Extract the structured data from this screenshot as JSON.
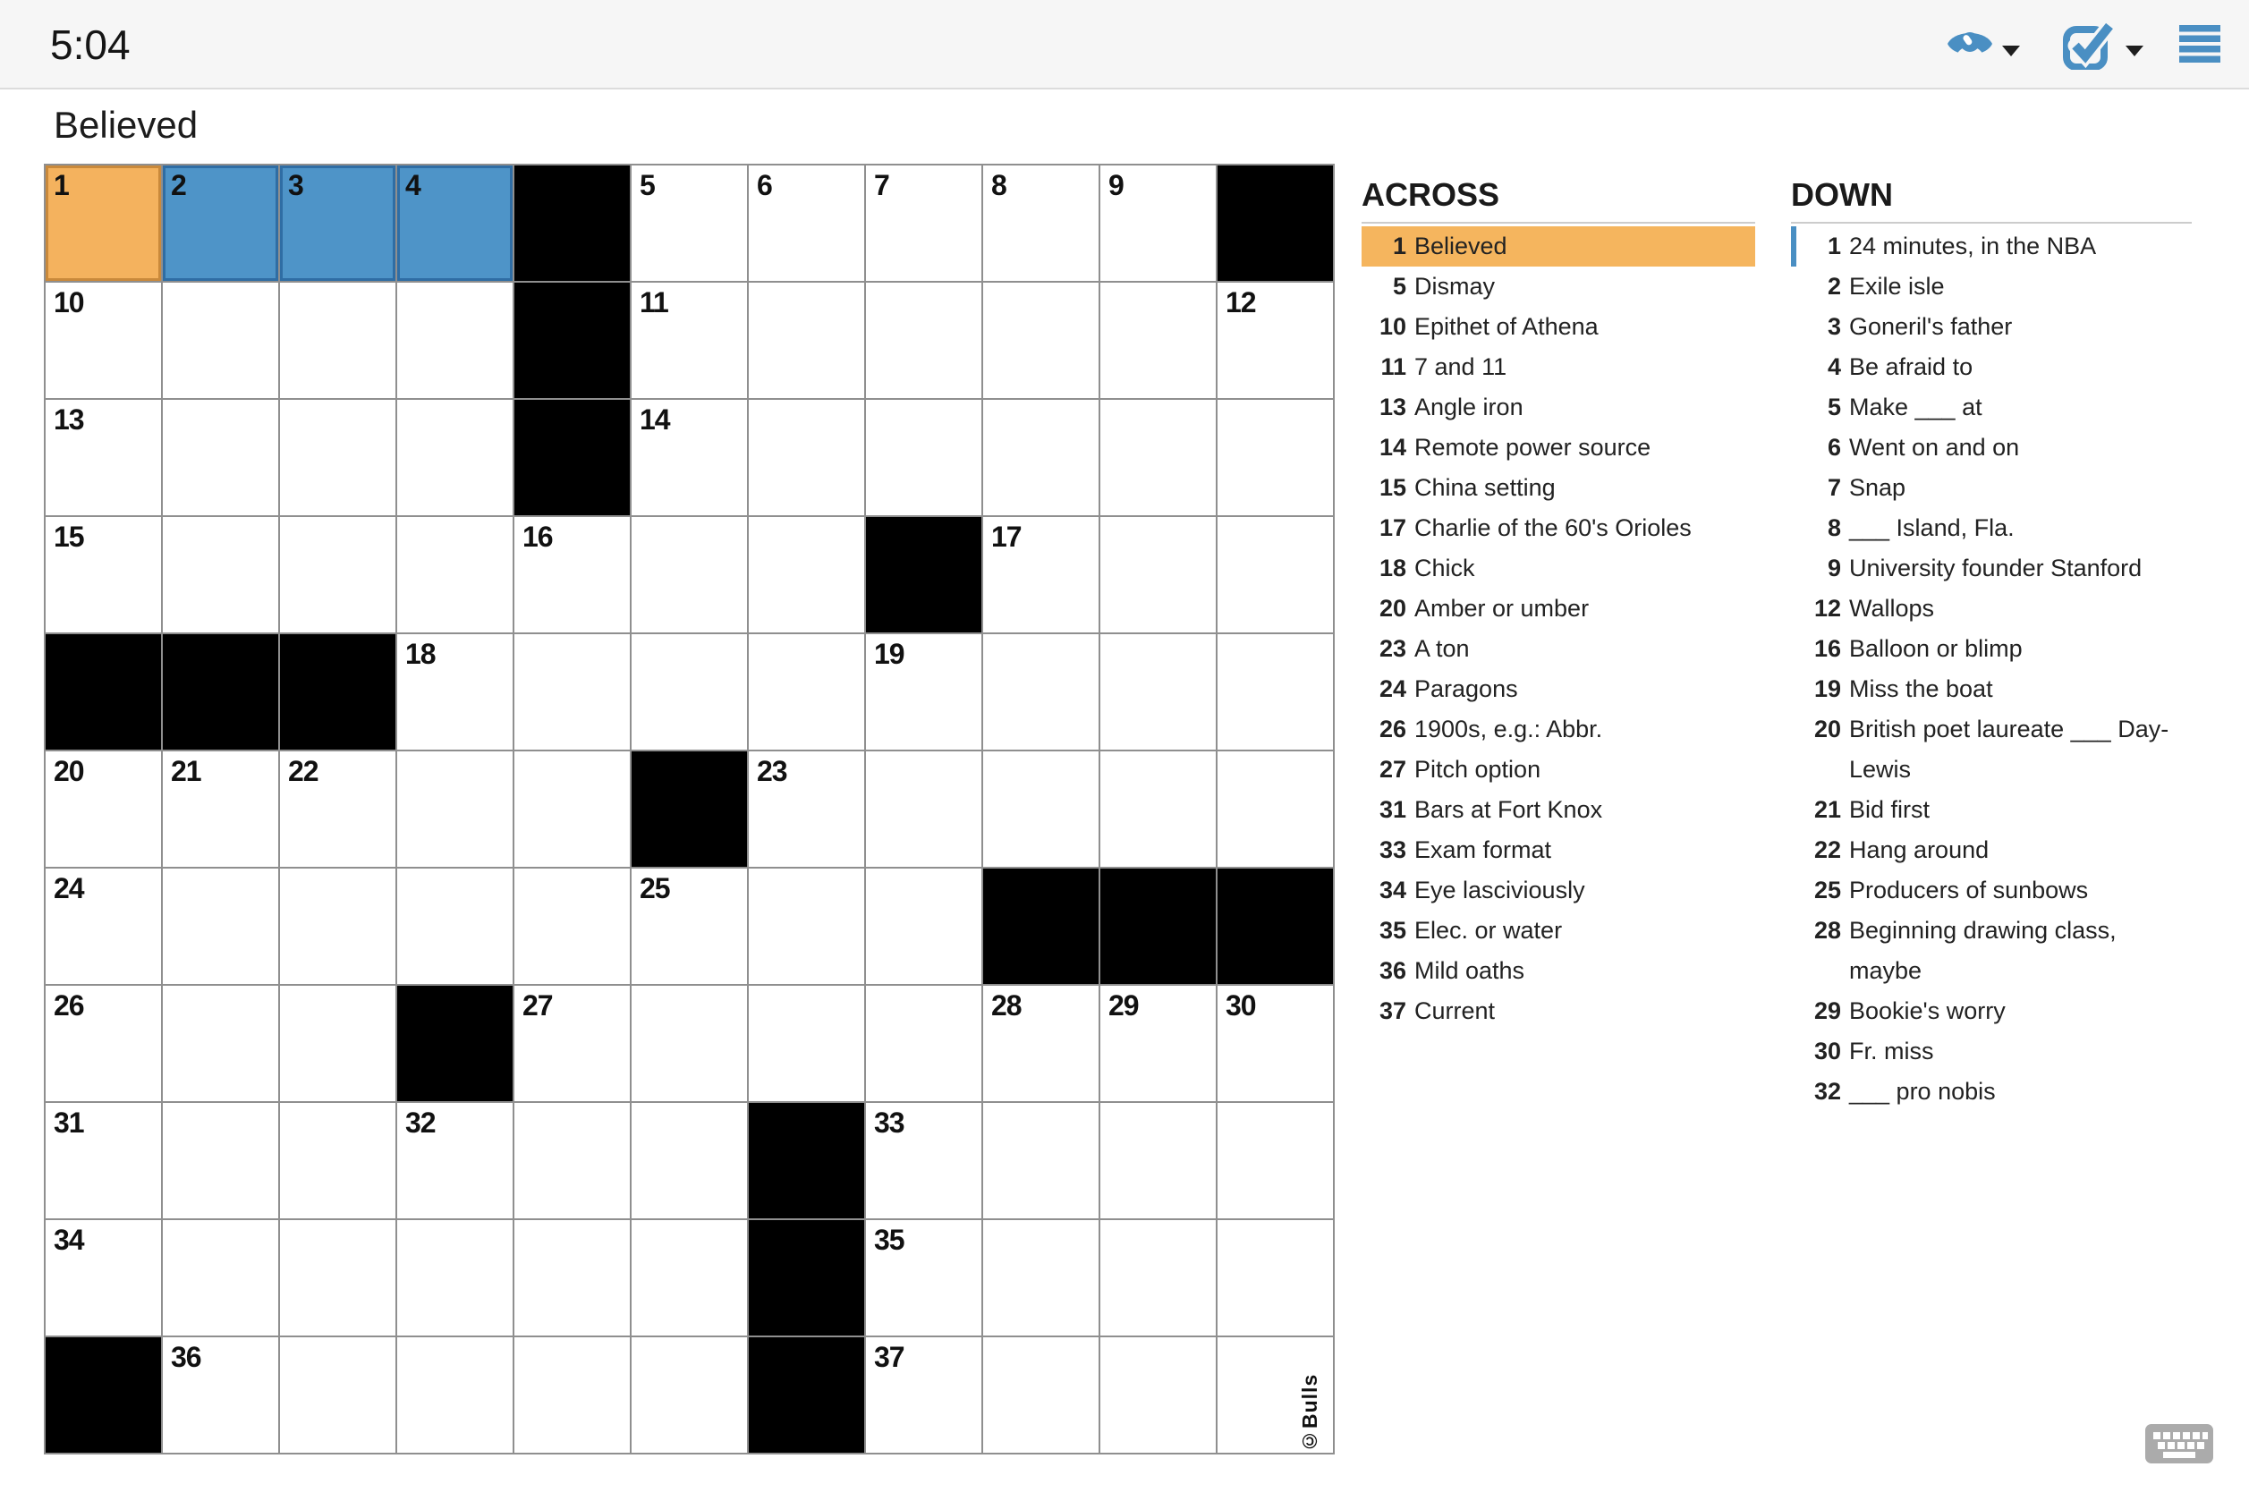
{
  "toolbar": {
    "timer": "5:04",
    "reveal_icon": "eye-icon",
    "check_icon": "check-square-icon",
    "menu_icon": "hamburger-menu-icon",
    "dropdown_icon": "caret-down-icon"
  },
  "puzzle": {
    "active_clue": "Believed",
    "credit": "©Bulls",
    "keyboard_icon": "keyboard-icon"
  },
  "grid": {
    "rows": 11,
    "cols": 11,
    "cells": [
      [
        {
          "n": "1",
          "t": "active"
        },
        {
          "n": "2",
          "t": "selected"
        },
        {
          "n": "3",
          "t": "selected"
        },
        {
          "n": "4",
          "t": "selected"
        },
        {
          "t": "black"
        },
        {
          "n": "5",
          "t": "white"
        },
        {
          "n": "6",
          "t": "white"
        },
        {
          "n": "7",
          "t": "white"
        },
        {
          "n": "8",
          "t": "white"
        },
        {
          "n": "9",
          "t": "white"
        },
        {
          "t": "black"
        }
      ],
      [
        {
          "n": "10",
          "t": "white"
        },
        {
          "t": "white"
        },
        {
          "t": "white"
        },
        {
          "t": "white"
        },
        {
          "t": "black"
        },
        {
          "n": "11",
          "t": "white"
        },
        {
          "t": "white"
        },
        {
          "t": "white"
        },
        {
          "t": "white"
        },
        {
          "t": "white"
        },
        {
          "n": "12",
          "t": "white"
        }
      ],
      [
        {
          "n": "13",
          "t": "white"
        },
        {
          "t": "white"
        },
        {
          "t": "white"
        },
        {
          "t": "white"
        },
        {
          "t": "black"
        },
        {
          "n": "14",
          "t": "white"
        },
        {
          "t": "white"
        },
        {
          "t": "white"
        },
        {
          "t": "white"
        },
        {
          "t": "white"
        },
        {
          "t": "white"
        }
      ],
      [
        {
          "n": "15",
          "t": "white"
        },
        {
          "t": "white"
        },
        {
          "t": "white"
        },
        {
          "t": "white"
        },
        {
          "n": "16",
          "t": "white"
        },
        {
          "t": "white"
        },
        {
          "t": "white"
        },
        {
          "t": "black"
        },
        {
          "n": "17",
          "t": "white"
        },
        {
          "t": "white"
        },
        {
          "t": "white"
        }
      ],
      [
        {
          "t": "black"
        },
        {
          "t": "black"
        },
        {
          "t": "black"
        },
        {
          "n": "18",
          "t": "white"
        },
        {
          "t": "white"
        },
        {
          "t": "white"
        },
        {
          "t": "white"
        },
        {
          "n": "19",
          "t": "white"
        },
        {
          "t": "white"
        },
        {
          "t": "white"
        },
        {
          "t": "white"
        }
      ],
      [
        {
          "n": "20",
          "t": "white"
        },
        {
          "n": "21",
          "t": "white"
        },
        {
          "n": "22",
          "t": "white"
        },
        {
          "t": "white"
        },
        {
          "t": "white"
        },
        {
          "t": "black"
        },
        {
          "n": "23",
          "t": "white"
        },
        {
          "t": "white"
        },
        {
          "t": "white"
        },
        {
          "t": "white"
        },
        {
          "t": "white"
        }
      ],
      [
        {
          "n": "24",
          "t": "white"
        },
        {
          "t": "white"
        },
        {
          "t": "white"
        },
        {
          "t": "white"
        },
        {
          "t": "white"
        },
        {
          "n": "25",
          "t": "white"
        },
        {
          "t": "white"
        },
        {
          "t": "white"
        },
        {
          "t": "black"
        },
        {
          "t": "black"
        },
        {
          "t": "black"
        }
      ],
      [
        {
          "n": "26",
          "t": "white"
        },
        {
          "t": "white"
        },
        {
          "t": "white"
        },
        {
          "t": "black"
        },
        {
          "n": "27",
          "t": "white"
        },
        {
          "t": "white"
        },
        {
          "t": "white"
        },
        {
          "t": "white"
        },
        {
          "n": "28",
          "t": "white"
        },
        {
          "n": "29",
          "t": "white"
        },
        {
          "n": "30",
          "t": "white"
        }
      ],
      [
        {
          "n": "31",
          "t": "white"
        },
        {
          "t": "white"
        },
        {
          "t": "white"
        },
        {
          "n": "32",
          "t": "white"
        },
        {
          "t": "white"
        },
        {
          "t": "white"
        },
        {
          "t": "black"
        },
        {
          "n": "33",
          "t": "white"
        },
        {
          "t": "white"
        },
        {
          "t": "white"
        },
        {
          "t": "white"
        }
      ],
      [
        {
          "n": "34",
          "t": "white"
        },
        {
          "t": "white"
        },
        {
          "t": "white"
        },
        {
          "t": "white"
        },
        {
          "t": "white"
        },
        {
          "t": "white"
        },
        {
          "t": "black"
        },
        {
          "n": "35",
          "t": "white"
        },
        {
          "t": "white"
        },
        {
          "t": "white"
        },
        {
          "t": "white"
        }
      ],
      [
        {
          "t": "black"
        },
        {
          "n": "36",
          "t": "white"
        },
        {
          "t": "white"
        },
        {
          "t": "white"
        },
        {
          "t": "white"
        },
        {
          "t": "white"
        },
        {
          "t": "black"
        },
        {
          "n": "37",
          "t": "white"
        },
        {
          "t": "white"
        },
        {
          "t": "white"
        },
        {
          "t": "white"
        }
      ]
    ]
  },
  "clues": {
    "across_header": "ACROSS",
    "down_header": "DOWN",
    "across": [
      {
        "num": "1",
        "text": "Believed",
        "highlighted": true
      },
      {
        "num": "5",
        "text": "Dismay"
      },
      {
        "num": "10",
        "text": "Epithet of Athena"
      },
      {
        "num": "11",
        "text": "7 and 11"
      },
      {
        "num": "13",
        "text": "Angle iron"
      },
      {
        "num": "14",
        "text": "Remote power source"
      },
      {
        "num": "15",
        "text": "China setting"
      },
      {
        "num": "17",
        "text": "Charlie of the 60's Orioles"
      },
      {
        "num": "18",
        "text": "Chick"
      },
      {
        "num": "20",
        "text": "Amber or umber"
      },
      {
        "num": "23",
        "text": "A ton"
      },
      {
        "num": "24",
        "text": "Paragons"
      },
      {
        "num": "26",
        "text": "1900s, e.g.: Abbr."
      },
      {
        "num": "27",
        "text": "Pitch option"
      },
      {
        "num": "31",
        "text": "Bars at Fort Knox"
      },
      {
        "num": "33",
        "text": "Exam format"
      },
      {
        "num": "34",
        "text": "Eye lasciviously"
      },
      {
        "num": "35",
        "text": "Elec. or water"
      },
      {
        "num": "36",
        "text": "Mild oaths"
      },
      {
        "num": "37",
        "text": "Current"
      }
    ],
    "down": [
      {
        "num": "1",
        "text": "24 minutes, in the NBA",
        "crossing": true
      },
      {
        "num": "2",
        "text": "Exile isle"
      },
      {
        "num": "3",
        "text": "Goneril's father"
      },
      {
        "num": "4",
        "text": "Be afraid to"
      },
      {
        "num": "5",
        "text": "Make ___ at"
      },
      {
        "num": "6",
        "text": "Went on and on"
      },
      {
        "num": "7",
        "text": "Snap"
      },
      {
        "num": "8",
        "text": "___ Island, Fla."
      },
      {
        "num": "9",
        "text": "University founder Stanford"
      },
      {
        "num": "12",
        "text": "Wallops"
      },
      {
        "num": "16",
        "text": "Balloon or blimp"
      },
      {
        "num": "19",
        "text": "Miss the boat"
      },
      {
        "num": "20",
        "text": "British poet laureate ___ Day-Lewis"
      },
      {
        "num": "21",
        "text": "Bid first"
      },
      {
        "num": "22",
        "text": "Hang around"
      },
      {
        "num": "25",
        "text": "Producers of sunbows"
      },
      {
        "num": "28",
        "text": "Beginning drawing class, maybe"
      },
      {
        "num": "29",
        "text": "Bookie's worry"
      },
      {
        "num": "30",
        "text": "Fr. miss"
      },
      {
        "num": "32",
        "text": "___ pro nobis"
      }
    ]
  },
  "colors": {
    "active_cell_orange": "#F4B25E",
    "active_cell_border": "#C9893B",
    "selected_cell_blue": "#4E94C8",
    "selected_cell_border": "#2F6DA4",
    "clue_highlight_orange": "#F5B55E",
    "icon_blue": "#4A8FC3",
    "grid_line_gray": "#8F8F8F",
    "black_cell": "#000000",
    "keyboard_gray": "#ABABAB"
  }
}
